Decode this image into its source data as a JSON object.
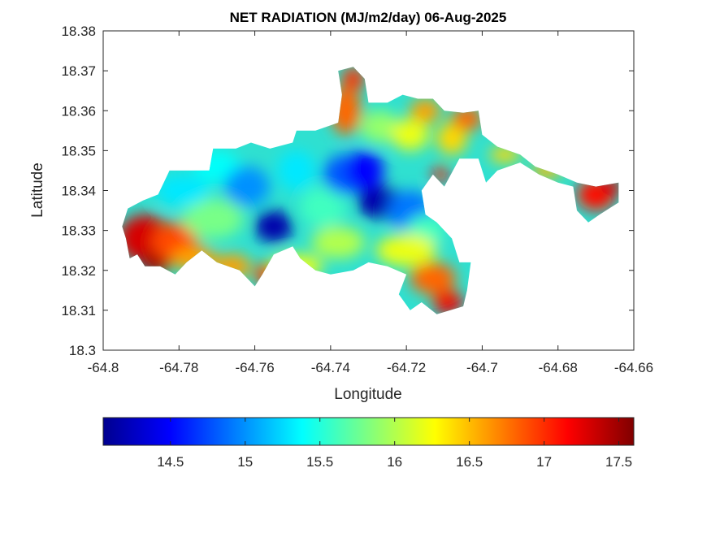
{
  "chart_data": {
    "type": "heatmap",
    "title": "NET RADIATION (MJ/m2/day) 06-Aug-2025",
    "xlabel": "Longitude",
    "ylabel": "Latitude",
    "xlim": [
      -64.8,
      -64.66
    ],
    "ylim": [
      18.3,
      18.38
    ],
    "x_ticks": [
      -64.8,
      -64.78,
      -64.76,
      -64.74,
      -64.72,
      -64.7,
      -64.68,
      -64.66
    ],
    "x_tick_labels": [
      "-64.8",
      "-64.78",
      "-64.76",
      "-64.74",
      "-64.72",
      "-64.7",
      "-64.68",
      "-64.66"
    ],
    "y_ticks": [
      18.3,
      18.31,
      18.32,
      18.33,
      18.34,
      18.35,
      18.36,
      18.37,
      18.38
    ],
    "y_tick_labels": [
      "18.3",
      "18.31",
      "18.32",
      "18.33",
      "18.34",
      "18.35",
      "18.36",
      "18.37",
      "18.38"
    ],
    "grid": false,
    "colormap": "jet",
    "colorbar": {
      "location": "below",
      "range": [
        14.05,
        17.6
      ],
      "ticks": [
        14.5,
        15,
        15.5,
        16,
        16.5,
        17,
        17.5
      ],
      "tick_labels": [
        "14.5",
        "15",
        "15.5",
        "16",
        "16.5",
        "17",
        "17.5"
      ]
    },
    "land_outline": [
      [
        -64.7935,
        18.3355
      ],
      [
        -64.7895,
        18.3375
      ],
      [
        -64.7855,
        18.339
      ],
      [
        -64.784,
        18.342
      ],
      [
        -64.7825,
        18.345
      ],
      [
        -64.779,
        18.345
      ],
      [
        -64.772,
        18.345
      ],
      [
        -64.771,
        18.3505
      ],
      [
        -64.765,
        18.3505
      ],
      [
        -64.761,
        18.352
      ],
      [
        -64.756,
        18.3505
      ],
      [
        -64.75,
        18.352
      ],
      [
        -64.749,
        18.355
      ],
      [
        -64.744,
        18.355
      ],
      [
        -64.738,
        18.357
      ],
      [
        -64.737,
        18.364
      ],
      [
        -64.738,
        18.37
      ],
      [
        -64.734,
        18.371
      ],
      [
        -64.731,
        18.368
      ],
      [
        -64.73,
        18.362
      ],
      [
        -64.725,
        18.362
      ],
      [
        -64.721,
        18.364
      ],
      [
        -64.717,
        18.363
      ],
      [
        -64.713,
        18.363
      ],
      [
        -64.71,
        18.36
      ],
      [
        -64.705,
        18.3595
      ],
      [
        -64.701,
        18.36
      ],
      [
        -64.7,
        18.354
      ],
      [
        -64.696,
        18.351
      ],
      [
        -64.69,
        18.349
      ],
      [
        -64.686,
        18.346
      ],
      [
        -64.68,
        18.344
      ],
      [
        -64.675,
        18.342
      ],
      [
        -64.67,
        18.341
      ],
      [
        -64.664,
        18.342
      ],
      [
        -64.664,
        18.337
      ],
      [
        -64.669,
        18.334
      ],
      [
        -64.672,
        18.332
      ],
      [
        -64.675,
        18.335
      ],
      [
        -64.676,
        18.341
      ],
      [
        -64.68,
        18.342
      ],
      [
        -64.685,
        18.344
      ],
      [
        -64.69,
        18.347
      ],
      [
        -64.696,
        18.345
      ],
      [
        -64.699,
        18.342
      ],
      [
        -64.701,
        18.348
      ],
      [
        -64.706,
        18.348
      ],
      [
        -64.71,
        18.341
      ],
      [
        -64.713,
        18.344
      ],
      [
        -64.716,
        18.34
      ],
      [
        -64.715,
        18.334
      ],
      [
        -64.712,
        18.332
      ],
      [
        -64.708,
        18.328
      ],
      [
        -64.706,
        18.322
      ],
      [
        -64.703,
        18.322
      ],
      [
        -64.704,
        18.315
      ],
      [
        -64.705,
        18.311
      ],
      [
        -64.712,
        18.309
      ],
      [
        -64.716,
        18.312
      ],
      [
        -64.719,
        18.31
      ],
      [
        -64.722,
        18.314
      ],
      [
        -64.72,
        18.319
      ],
      [
        -64.725,
        18.321
      ],
      [
        -64.73,
        18.322
      ],
      [
        -64.734,
        18.32
      ],
      [
        -64.74,
        18.319
      ],
      [
        -64.744,
        18.32
      ],
      [
        -64.748,
        18.323
      ],
      [
        -64.75,
        18.326
      ],
      [
        -64.755,
        18.324
      ],
      [
        -64.758,
        18.319
      ],
      [
        -64.76,
        18.316
      ],
      [
        -64.764,
        18.32
      ],
      [
        -64.77,
        18.322
      ],
      [
        -64.774,
        18.325
      ],
      [
        -64.778,
        18.322
      ],
      [
        -64.781,
        18.319
      ],
      [
        -64.785,
        18.321
      ],
      [
        -64.789,
        18.321
      ],
      [
        -64.791,
        18.324
      ],
      [
        -64.793,
        18.323
      ],
      [
        -64.794,
        18.328
      ],
      [
        -64.795,
        18.331
      ]
    ]
  }
}
